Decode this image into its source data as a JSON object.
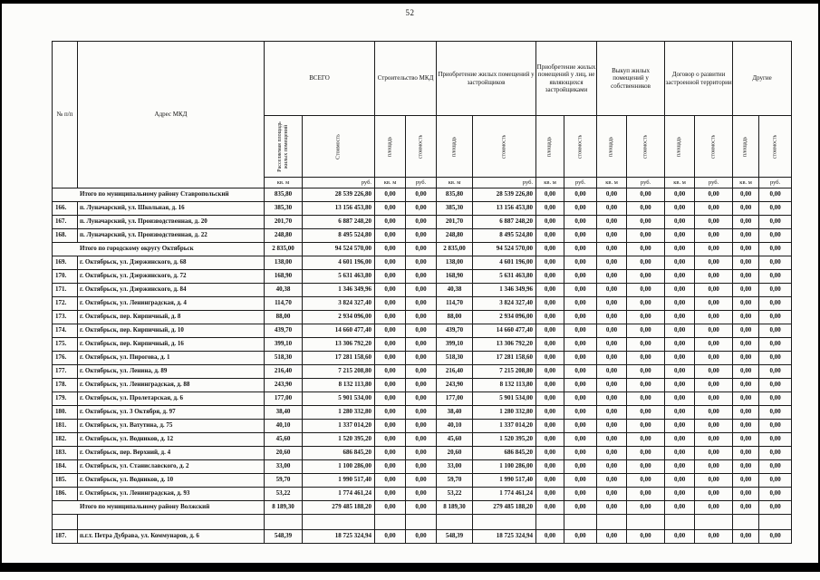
{
  "page": {
    "number": "52"
  },
  "table": {
    "headers": {
      "num": "№ п/п",
      "address": "Адрес МКД",
      "units": {
        "area": "кв. м",
        "cost": "руб."
      },
      "groups": [
        {
          "label": "ВСЕГО",
          "sub": [
            "Расселяемая площадь жилых помещений",
            "Стоимость"
          ]
        },
        {
          "label": "Строительство МКД",
          "sub": [
            "площадь",
            "стоимость"
          ]
        },
        {
          "label": "Приобретение жилых помещений у застройщиков",
          "sub": [
            "площадь",
            "стоимость"
          ]
        },
        {
          "label": "Приобретение жилых помещений у лиц, не являющихся застройщиками",
          "sub": [
            "площадь",
            "стоимость"
          ]
        },
        {
          "label": "Выкуп жилых помещений у собственников",
          "sub": [
            "площадь",
            "стоимость"
          ]
        },
        {
          "label": "Договор о развитии застроенной территории",
          "sub": [
            "площадь",
            "стоимость"
          ]
        },
        {
          "label": "Другие",
          "sub": [
            "площадь",
            "стоимость"
          ]
        }
      ]
    },
    "rows": [
      {
        "type": "total",
        "label": "Итого по муниципальному району Ставропольский",
        "values": [
          "835,80",
          "28 539 226,80",
          "0,00",
          "0,00",
          "835,80",
          "28 539 226,80",
          "0,00",
          "0,00",
          "0,00",
          "0,00",
          "0,00",
          "0,00",
          "0,00",
          "0,00"
        ]
      },
      {
        "type": "item",
        "num": "166.",
        "address": "п. Луначарский, ул. Школьная, д. 16",
        "values": [
          "385,30",
          "13 156 453,80",
          "0,00",
          "0,00",
          "385,30",
          "13 156 453,80",
          "0,00",
          "0,00",
          "0,00",
          "0,00",
          "0,00",
          "0,00",
          "0,00",
          "0,00"
        ]
      },
      {
        "type": "item",
        "num": "167.",
        "address": "п. Луначарский, ул. Производственная, д. 20",
        "values": [
          "201,70",
          "6 887 248,20",
          "0,00",
          "0,00",
          "201,70",
          "6 887 248,20",
          "0,00",
          "0,00",
          "0,00",
          "0,00",
          "0,00",
          "0,00",
          "0,00",
          "0,00"
        ]
      },
      {
        "type": "item",
        "num": "168.",
        "address": "п. Луначарский, ул. Производственная, д. 22",
        "values": [
          "248,80",
          "8 495 524,80",
          "0,00",
          "0,00",
          "248,80",
          "8 495 524,80",
          "0,00",
          "0,00",
          "0,00",
          "0,00",
          "0,00",
          "0,00",
          "0,00",
          "0,00"
        ]
      },
      {
        "type": "total",
        "label": "Итого по городскому округу Октябрьск",
        "values": [
          "2 835,00",
          "94 524 570,00",
          "0,00",
          "0,00",
          "2 835,00",
          "94 524 570,00",
          "0,00",
          "0,00",
          "0,00",
          "0,00",
          "0,00",
          "0,00",
          "0,00",
          "0,00"
        ]
      },
      {
        "type": "item",
        "num": "169.",
        "address": "г. Октябрьск, ул. Дзержинского, д. 68",
        "values": [
          "138,00",
          "4 601 196,00",
          "0,00",
          "0,00",
          "138,00",
          "4 601 196,00",
          "0,00",
          "0,00",
          "0,00",
          "0,00",
          "0,00",
          "0,00",
          "0,00",
          "0,00"
        ]
      },
      {
        "type": "item",
        "num": "170.",
        "address": "г. Октябрьск, ул. Дзержинского, д. 72",
        "values": [
          "168,90",
          "5 631 463,80",
          "0,00",
          "0,00",
          "168,90",
          "5 631 463,80",
          "0,00",
          "0,00",
          "0,00",
          "0,00",
          "0,00",
          "0,00",
          "0,00",
          "0,00"
        ]
      },
      {
        "type": "item",
        "num": "171.",
        "address": "г. Октябрьск, ул. Дзержинского, д. 84",
        "values": [
          "40,38",
          "1 346 349,96",
          "0,00",
          "0,00",
          "40,38",
          "1 346 349,96",
          "0,00",
          "0,00",
          "0,00",
          "0,00",
          "0,00",
          "0,00",
          "0,00",
          "0,00"
        ]
      },
      {
        "type": "item",
        "num": "172.",
        "address": "г. Октябрьск, ул. Ленинградская, д. 4",
        "values": [
          "114,70",
          "3 824 327,40",
          "0,00",
          "0,00",
          "114,70",
          "3 824 327,40",
          "0,00",
          "0,00",
          "0,00",
          "0,00",
          "0,00",
          "0,00",
          "0,00",
          "0,00"
        ]
      },
      {
        "type": "item",
        "num": "173.",
        "address": "г. Октябрьск, пер. Кирпичный, д. 8",
        "values": [
          "88,00",
          "2 934 096,00",
          "0,00",
          "0,00",
          "88,00",
          "2 934 096,00",
          "0,00",
          "0,00",
          "0,00",
          "0,00",
          "0,00",
          "0,00",
          "0,00",
          "0,00"
        ]
      },
      {
        "type": "item",
        "num": "174.",
        "address": "г. Октябрьск, пер. Кирпичный, д. 10",
        "values": [
          "439,70",
          "14 660 477,40",
          "0,00",
          "0,00",
          "439,70",
          "14 660 477,40",
          "0,00",
          "0,00",
          "0,00",
          "0,00",
          "0,00",
          "0,00",
          "0,00",
          "0,00"
        ]
      },
      {
        "type": "item",
        "num": "175.",
        "address": "г. Октябрьск, пер. Кирпичный, д. 16",
        "values": [
          "399,10",
          "13 306 792,20",
          "0,00",
          "0,00",
          "399,10",
          "13 306 792,20",
          "0,00",
          "0,00",
          "0,00",
          "0,00",
          "0,00",
          "0,00",
          "0,00",
          "0,00"
        ]
      },
      {
        "type": "item",
        "num": "176.",
        "address": "г. Октябрьск, ул. Пирогова, д. 1",
        "values": [
          "518,30",
          "17 281 158,60",
          "0,00",
          "0,00",
          "518,30",
          "17 281 158,60",
          "0,00",
          "0,00",
          "0,00",
          "0,00",
          "0,00",
          "0,00",
          "0,00",
          "0,00"
        ]
      },
      {
        "type": "item",
        "num": "177.",
        "address": "г. Октябрьск, ул. Ленина, д. 89",
        "values": [
          "216,40",
          "7 215 208,80",
          "0,00",
          "0,00",
          "216,40",
          "7 215 208,80",
          "0,00",
          "0,00",
          "0,00",
          "0,00",
          "0,00",
          "0,00",
          "0,00",
          "0,00"
        ]
      },
      {
        "type": "item",
        "num": "178.",
        "address": "г. Октябрьск, ул. Ленинградская, д. 88",
        "values": [
          "243,90",
          "8 132 113,80",
          "0,00",
          "0,00",
          "243,90",
          "8 132 113,80",
          "0,00",
          "0,00",
          "0,00",
          "0,00",
          "0,00",
          "0,00",
          "0,00",
          "0,00"
        ]
      },
      {
        "type": "item",
        "num": "179.",
        "address": "г. Октябрьск, ул. Пролетарская, д. 6",
        "values": [
          "177,00",
          "5 901 534,00",
          "0,00",
          "0,00",
          "177,00",
          "5 901 534,00",
          "0,00",
          "0,00",
          "0,00",
          "0,00",
          "0,00",
          "0,00",
          "0,00",
          "0,00"
        ]
      },
      {
        "type": "item",
        "num": "180.",
        "address": "г. Октябрьск, ул. 3 Октября, д. 97",
        "values": [
          "38,40",
          "1 280 332,80",
          "0,00",
          "0,00",
          "38,40",
          "1 280 332,80",
          "0,00",
          "0,00",
          "0,00",
          "0,00",
          "0,00",
          "0,00",
          "0,00",
          "0,00"
        ]
      },
      {
        "type": "item",
        "num": "181.",
        "address": "г. Октябрьск, ул. Ватутина, д. 75",
        "values": [
          "40,10",
          "1 337 014,20",
          "0,00",
          "0,00",
          "40,10",
          "1 337 014,20",
          "0,00",
          "0,00",
          "0,00",
          "0,00",
          "0,00",
          "0,00",
          "0,00",
          "0,00"
        ]
      },
      {
        "type": "item",
        "num": "182.",
        "address": "г. Октябрьск, ул. Водников, д. 12",
        "values": [
          "45,60",
          "1 520 395,20",
          "0,00",
          "0,00",
          "45,60",
          "1 520 395,20",
          "0,00",
          "0,00",
          "0,00",
          "0,00",
          "0,00",
          "0,00",
          "0,00",
          "0,00"
        ]
      },
      {
        "type": "item",
        "num": "183.",
        "address": "г. Октябрьск, пер. Верхний, д. 4",
        "values": [
          "20,60",
          "686 845,20",
          "0,00",
          "0,00",
          "20,60",
          "686 845,20",
          "0,00",
          "0,00",
          "0,00",
          "0,00",
          "0,00",
          "0,00",
          "0,00",
          "0,00"
        ]
      },
      {
        "type": "item",
        "num": "184.",
        "address": "г. Октябрьск, ул. Станиславского, д. 2",
        "values": [
          "33,00",
          "1 100 286,00",
          "0,00",
          "0,00",
          "33,00",
          "1 100 286,00",
          "0,00",
          "0,00",
          "0,00",
          "0,00",
          "0,00",
          "0,00",
          "0,00",
          "0,00"
        ]
      },
      {
        "type": "item",
        "num": "185.",
        "address": "г. Октябрьск, ул. Водников, д. 10",
        "values": [
          "59,70",
          "1 990 517,40",
          "0,00",
          "0,00",
          "59,70",
          "1 990 517,40",
          "0,00",
          "0,00",
          "0,00",
          "0,00",
          "0,00",
          "0,00",
          "0,00",
          "0,00"
        ]
      },
      {
        "type": "item",
        "num": "186.",
        "address": "г. Октябрьск, ул. Ленинградская, д. 93",
        "values": [
          "53,22",
          "1 774 461,24",
          "0,00",
          "0,00",
          "53,22",
          "1 774 461,24",
          "0,00",
          "0,00",
          "0,00",
          "0,00",
          "0,00",
          "0,00",
          "0,00",
          "0,00"
        ]
      },
      {
        "type": "total",
        "label": "Итого по муниципальному району Волжский",
        "values": [
          "8 189,30",
          "279 485 188,20",
          "0,00",
          "0,00",
          "8 189,30",
          "279 485 188,20",
          "0,00",
          "0,00",
          "0,00",
          "0,00",
          "0,00",
          "0,00",
          "0,00",
          "0,00"
        ]
      },
      {
        "type": "spacer",
        "num": "",
        "address": "",
        "values": [
          "",
          "",
          "",
          "",
          "",
          "",
          "",
          "",
          "",
          "",
          "",
          "",
          "",
          ""
        ]
      },
      {
        "type": "item",
        "num": "187.",
        "address": "п.г.т. Петра Дубрава, ул. Коммунаров, д. 6",
        "values": [
          "548,39",
          "18 725 324,94",
          "0,00",
          "0,00",
          "548,39",
          "18 725 324,94",
          "0,00",
          "0,00",
          "0,00",
          "0,00",
          "0,00",
          "0,00",
          "0,00",
          "0,00"
        ]
      }
    ]
  }
}
